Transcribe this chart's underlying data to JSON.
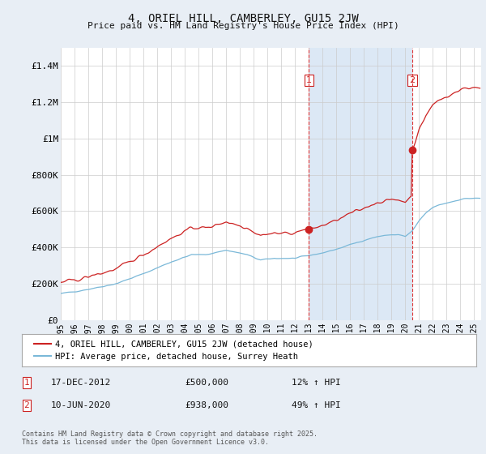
{
  "title": "4, ORIEL HILL, CAMBERLEY, GU15 2JW",
  "subtitle": "Price paid vs. HM Land Registry's House Price Index (HPI)",
  "background_color": "#e8eef5",
  "plot_bg_color": "#ffffff",
  "red_line_label": "4, ORIEL HILL, CAMBERLEY, GU15 2JW (detached house)",
  "blue_line_label": "HPI: Average price, detached house, Surrey Heath",
  "annotation1_label": "1",
  "annotation1_date": "17-DEC-2012",
  "annotation1_price": "£500,000",
  "annotation1_hpi": "12% ↑ HPI",
  "annotation2_label": "2",
  "annotation2_date": "10-JUN-2020",
  "annotation2_price": "£938,000",
  "annotation2_hpi": "49% ↑ HPI",
  "footnote": "Contains HM Land Registry data © Crown copyright and database right 2025.\nThis data is licensed under the Open Government Licence v3.0.",
  "ylim": [
    0,
    1500000
  ],
  "yticks": [
    0,
    200000,
    400000,
    600000,
    800000,
    1000000,
    1200000,
    1400000
  ],
  "ytick_labels": [
    "£0",
    "£200K",
    "£400K",
    "£600K",
    "£800K",
    "£1M",
    "£1.2M",
    "£1.4M"
  ],
  "vline1_x": 2013.0,
  "vline2_x": 2020.5,
  "marker1_red_y": 500000,
  "marker2_red_y": 938000,
  "shade_color": "#dce8f5",
  "xlim": [
    1995,
    2025.5
  ],
  "xtick_years": [
    1995,
    1996,
    1997,
    1998,
    1999,
    2000,
    2001,
    2002,
    2003,
    2004,
    2005,
    2006,
    2007,
    2008,
    2009,
    2010,
    2011,
    2012,
    2013,
    2014,
    2015,
    2016,
    2017,
    2018,
    2019,
    2020,
    2021,
    2022,
    2023,
    2024,
    2025
  ]
}
